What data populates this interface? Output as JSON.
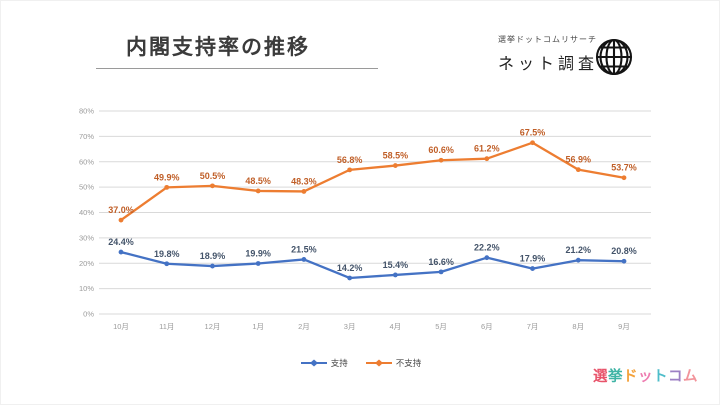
{
  "header": {
    "title": "内閣支持率の推移"
  },
  "research_logo": {
    "line1": "選挙ドットコムリサーチ",
    "line2": "ネット調査",
    "icon": "globe-icon",
    "icon_color": "#141414"
  },
  "footer_logo": {
    "text": "選挙ドットコム",
    "letters": [
      {
        "ch": "選",
        "color": "#e8546b"
      },
      {
        "ch": "挙",
        "color": "#3fb4a5"
      },
      {
        "ch": "ド",
        "color": "#f4a23c"
      },
      {
        "ch": "ッ",
        "color": "#ee7cb0"
      },
      {
        "ch": "ト",
        "color": "#4ebdca"
      },
      {
        "ch": "コ",
        "color": "#9c7fc4"
      },
      {
        "ch": "ム",
        "color": "#f2949b"
      }
    ]
  },
  "chart_data": {
    "type": "line",
    "title": "内閣支持率の推移",
    "categories": [
      "10月",
      "11月",
      "12月",
      "1月",
      "2月",
      "3月",
      "4月",
      "5月",
      "6月",
      "7月",
      "8月",
      "9月"
    ],
    "series": [
      {
        "name": "支持",
        "color": "#4472c4",
        "label_color": "#44546a",
        "values": [
          24.4,
          19.8,
          18.9,
          19.9,
          21.5,
          14.2,
          15.4,
          16.6,
          22.2,
          17.9,
          21.2,
          20.8
        ]
      },
      {
        "name": "不支持",
        "color": "#ed7d31",
        "label_color": "#c05f28",
        "values": [
          37.0,
          49.9,
          50.5,
          48.5,
          48.3,
          56.8,
          58.5,
          60.6,
          61.2,
          67.5,
          56.9,
          53.7
        ]
      }
    ],
    "ylim": [
      0,
      80
    ],
    "ytick_step": 10,
    "ytick_suffix": "%",
    "grid": true,
    "gridline_color": "#d9d9d9",
    "tick_label_color": "#9b9b9b",
    "data_labels": true,
    "legend_position": "bottom"
  }
}
